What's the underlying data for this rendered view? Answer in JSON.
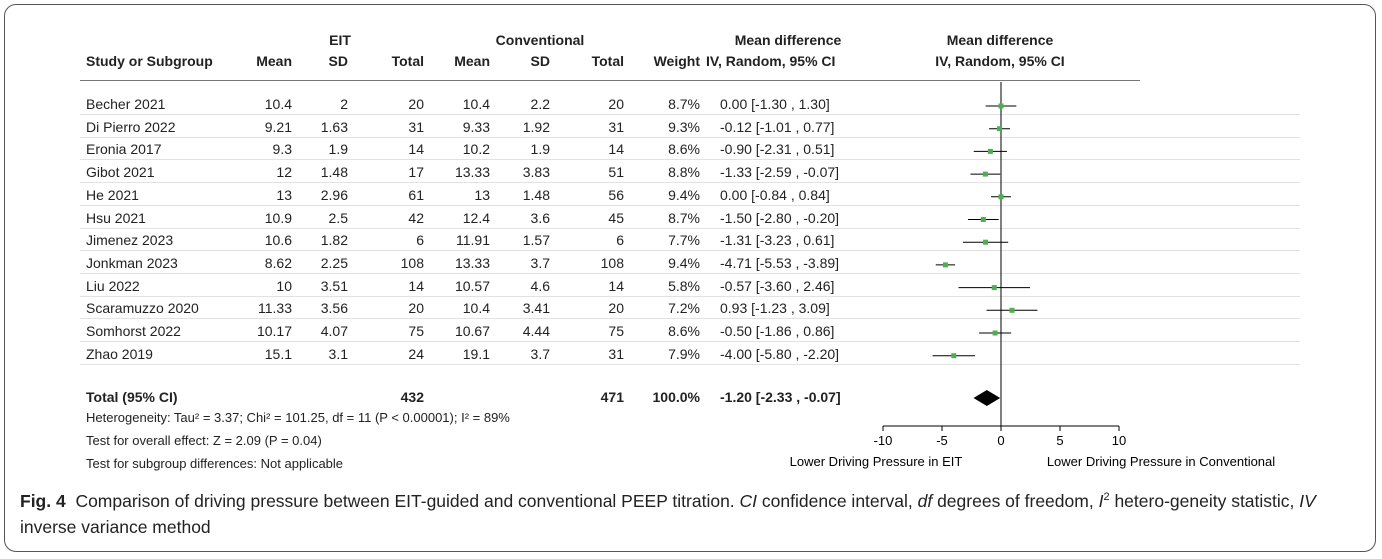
{
  "table": {
    "header_groups": {
      "eit": "EIT",
      "conventional": "Conventional",
      "md_numeric": "Mean difference",
      "md_plot": "Mean difference"
    },
    "headers": {
      "study": "Study or Subgroup",
      "eit_mean": "Mean",
      "eit_sd": "SD",
      "eit_total": "Total",
      "conv_mean": "Mean",
      "conv_sd": "SD",
      "conv_total": "Total",
      "weight": "Weight",
      "ci_numeric": "IV, Random, 95% CI",
      "ci_plot": "IV, Random, 95% CI"
    },
    "rows": [
      {
        "study": "Becher 2021",
        "eit_mean": "10.4",
        "eit_sd": "2",
        "eit_total": "20",
        "conv_mean": "10.4",
        "conv_sd": "2.2",
        "conv_total": "20",
        "weight": "8.7%",
        "ci": "0.00 [-1.30 , 1.30]"
      },
      {
        "study": "Di Pierro 2022",
        "eit_mean": "9.21",
        "eit_sd": "1.63",
        "eit_total": "31",
        "conv_mean": "9.33",
        "conv_sd": "1.92",
        "conv_total": "31",
        "weight": "9.3%",
        "ci": "-0.12 [-1.01 , 0.77]"
      },
      {
        "study": "Eronia 2017",
        "eit_mean": "9.3",
        "eit_sd": "1.9",
        "eit_total": "14",
        "conv_mean": "10.2",
        "conv_sd": "1.9",
        "conv_total": "14",
        "weight": "8.6%",
        "ci": "-0.90 [-2.31 , 0.51]"
      },
      {
        "study": "Gibot 2021",
        "eit_mean": "12",
        "eit_sd": "1.48",
        "eit_total": "17",
        "conv_mean": "13.33",
        "conv_sd": "3.83",
        "conv_total": "51",
        "weight": "8.8%",
        "ci": "-1.33 [-2.59 , -0.07]"
      },
      {
        "study": "He 2021",
        "eit_mean": "13",
        "eit_sd": "2.96",
        "eit_total": "61",
        "conv_mean": "13",
        "conv_sd": "1.48",
        "conv_total": "56",
        "weight": "9.4%",
        "ci": "0.00 [-0.84 , 0.84]"
      },
      {
        "study": "Hsu 2021",
        "eit_mean": "10.9",
        "eit_sd": "2.5",
        "eit_total": "42",
        "conv_mean": "12.4",
        "conv_sd": "3.6",
        "conv_total": "45",
        "weight": "8.7%",
        "ci": "-1.50 [-2.80 , -0.20]"
      },
      {
        "study": "Jimenez 2023",
        "eit_mean": "10.6",
        "eit_sd": "1.82",
        "eit_total": "6",
        "conv_mean": "11.91",
        "conv_sd": "1.57",
        "conv_total": "6",
        "weight": "7.7%",
        "ci": "-1.31 [-3.23 , 0.61]"
      },
      {
        "study": "Jonkman 2023",
        "eit_mean": "8.62",
        "eit_sd": "2.25",
        "eit_total": "108",
        "conv_mean": "13.33",
        "conv_sd": "3.7",
        "conv_total": "108",
        "weight": "9.4%",
        "ci": "-4.71 [-5.53 , -3.89]"
      },
      {
        "study": "Liu 2022",
        "eit_mean": "10",
        "eit_sd": "3.51",
        "eit_total": "14",
        "conv_mean": "10.57",
        "conv_sd": "4.6",
        "conv_total": "14",
        "weight": "5.8%",
        "ci": "-0.57 [-3.60 , 2.46]"
      },
      {
        "study": "Scaramuzzo 2020",
        "eit_mean": "11.33",
        "eit_sd": "3.56",
        "eit_total": "20",
        "conv_mean": "10.4",
        "conv_sd": "3.41",
        "conv_total": "20",
        "weight": "7.2%",
        "ci": "0.93 [-1.23 , 3.09]"
      },
      {
        "study": "Somhorst 2022",
        "eit_mean": "10.17",
        "eit_sd": "4.07",
        "eit_total": "75",
        "conv_mean": "10.67",
        "conv_sd": "4.44",
        "conv_total": "75",
        "weight": "8.6%",
        "ci": "-0.50 [-1.86 , 0.86]"
      },
      {
        "study": "Zhao 2019",
        "eit_mean": "15.1",
        "eit_sd": "3.1",
        "eit_total": "24",
        "conv_mean": "19.1",
        "conv_sd": "3.7",
        "conv_total": "31",
        "weight": "7.9%",
        "ci": "-4.00 [-5.80 , -2.20]"
      }
    ],
    "total": {
      "label": "Total (95% CI)",
      "eit_total": "432",
      "conv_total": "471",
      "weight": "100.0%",
      "ci": "-1.20 [-2.33 , -0.07]"
    },
    "footnotes": {
      "heterogeneity": "Heterogeneity: Tau² = 3.37; Chi² = 101.25, df = 11 (P < 0.00001); I² = 89%",
      "overall_effect": "Test for overall effect: Z = 2.09 (P = 0.04)",
      "subgroup": "Test for subgroup differences: Not applicable"
    }
  },
  "chart_data": {
    "type": "scatter",
    "subtype": "forest-plot",
    "xlim": [
      -10,
      10
    ],
    "xticks": [
      "-10",
      "-5",
      "0",
      "5",
      "10"
    ],
    "xtick_values": [
      -10,
      -5,
      0,
      5,
      10
    ],
    "left_label": "Lower Driving Pressure in EIT",
    "right_label": "Lower Driving Pressure in Conventional",
    "studies": [
      {
        "name": "Becher 2021",
        "md": 0.0,
        "lo": -1.3,
        "hi": 1.3
      },
      {
        "name": "Di Pierro 2022",
        "md": -0.12,
        "lo": -1.01,
        "hi": 0.77
      },
      {
        "name": "Eronia 2017",
        "md": -0.9,
        "lo": -2.31,
        "hi": 0.51
      },
      {
        "name": "Gibot 2021",
        "md": -1.33,
        "lo": -2.59,
        "hi": -0.07
      },
      {
        "name": "He 2021",
        "md": 0.0,
        "lo": -0.84,
        "hi": 0.84
      },
      {
        "name": "Hsu 2021",
        "md": -1.5,
        "lo": -2.8,
        "hi": -0.2
      },
      {
        "name": "Jimenez 2023",
        "md": -1.31,
        "lo": -3.23,
        "hi": 0.61
      },
      {
        "name": "Jonkman 2023",
        "md": -4.71,
        "lo": -5.53,
        "hi": -3.89
      },
      {
        "name": "Liu 2022",
        "md": -0.57,
        "lo": -3.6,
        "hi": 2.46
      },
      {
        "name": "Scaramuzzo 2020",
        "md": 0.93,
        "lo": -1.23,
        "hi": 3.09
      },
      {
        "name": "Somhorst 2022",
        "md": -0.5,
        "lo": -1.86,
        "hi": 0.86
      },
      {
        "name": "Zhao 2019",
        "md": -4.0,
        "lo": -5.8,
        "hi": -2.2
      }
    ],
    "pooled": {
      "md": -1.2,
      "lo": -2.33,
      "hi": -0.07
    },
    "colors": {
      "marker": "#4caf50",
      "line": "#000000",
      "diamond": "#000000"
    }
  },
  "caption": {
    "fig_label": "Fig. 4",
    "text": "Comparison of driving pressure between EIT-guided and conventional PEEP titration.",
    "ci_abbr": "CI",
    "ci_def": "confidence interval,",
    "df_abbr": "df",
    "df_def": "degrees of freedom,",
    "i2_abbr": "I",
    "i2_sup": "2",
    "i2_def": "hetero-geneity statistic,",
    "iv_abbr": "IV",
    "iv_def": "inverse variance method"
  }
}
